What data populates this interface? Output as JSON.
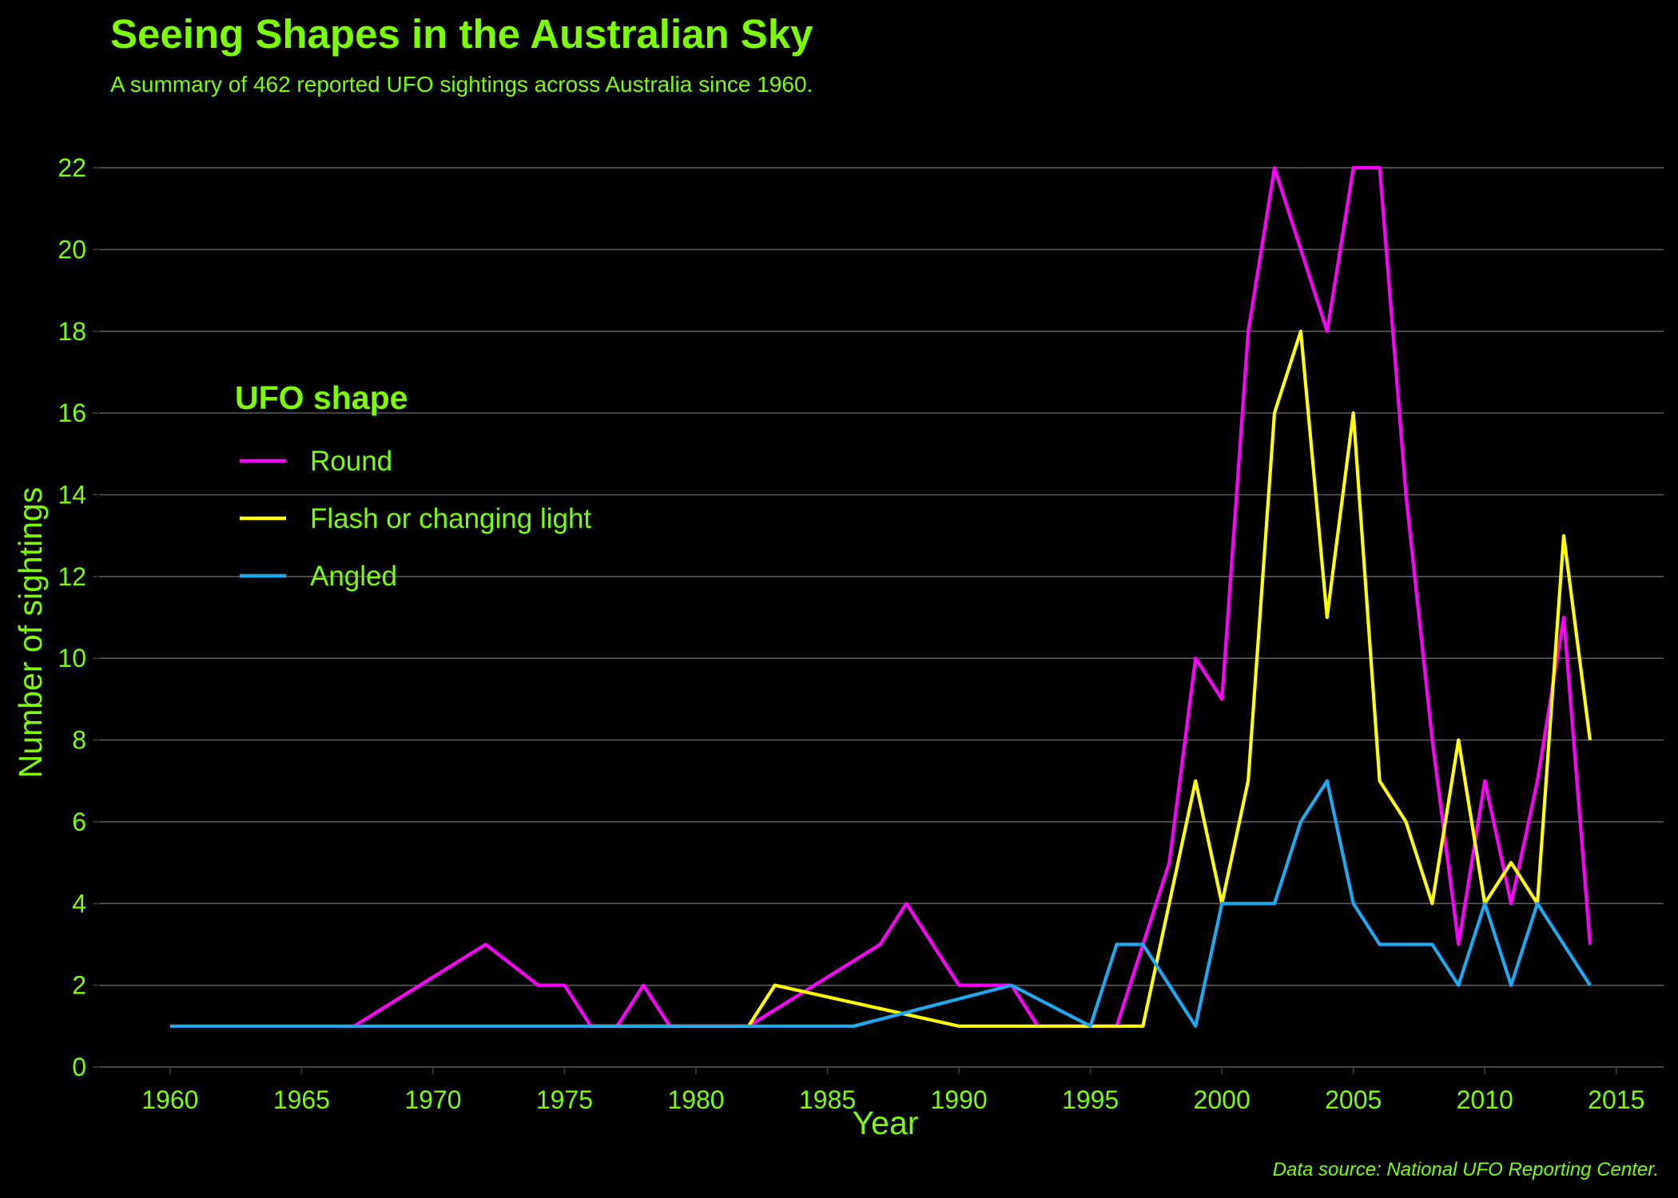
{
  "colors": {
    "background": "#000000",
    "text": "#7CFC00",
    "grid": "#5a5a5a"
  },
  "chart_data": {
    "type": "line",
    "title": "Seeing Shapes in the Australian Sky",
    "subtitle": "A summary of 462 reported UFO sightings across Australia since 1960.",
    "caption": "Data source: National UFO Reporting Center.",
    "xlabel": "Year",
    "ylabel": "Number of sightings",
    "xlim": [
      1957.3,
      2016.8
    ],
    "ylim": [
      0,
      22.9
    ],
    "xticks": [
      1960,
      1965,
      1970,
      1975,
      1980,
      1985,
      1990,
      1995,
      2000,
      2005,
      2010,
      2015
    ],
    "yticks": [
      0,
      2,
      4,
      6,
      8,
      10,
      12,
      14,
      16,
      18,
      20,
      22
    ],
    "grid": "horizontal",
    "legend": {
      "title": "UFO shape",
      "placement": "left"
    },
    "series": [
      {
        "name": "Round",
        "color": "#FF00FF",
        "points": [
          [
            1967,
            1
          ],
          [
            1972,
            3
          ],
          [
            1974,
            2
          ],
          [
            1975,
            2
          ],
          [
            1976,
            1
          ],
          [
            1977,
            1
          ],
          [
            1978,
            2
          ],
          [
            1979,
            1
          ],
          [
            1982,
            1
          ],
          [
            1987,
            3
          ],
          [
            1988,
            4
          ],
          [
            1990,
            2
          ],
          [
            1992,
            2
          ],
          [
            1993,
            1
          ],
          [
            1996,
            1
          ],
          [
            1998,
            5
          ],
          [
            1999,
            10
          ],
          [
            2000,
            9
          ],
          [
            2001,
            18
          ],
          [
            2002,
            22
          ],
          [
            2004,
            18
          ],
          [
            2005,
            22
          ],
          [
            2006,
            22
          ],
          [
            2007,
            14
          ],
          [
            2008,
            8
          ],
          [
            2009,
            3
          ],
          [
            2010,
            7
          ],
          [
            2011,
            4
          ],
          [
            2012,
            7
          ],
          [
            2013,
            11
          ],
          [
            2014,
            3
          ]
        ]
      },
      {
        "name": "Flash or changing light",
        "color": "#FFFF00",
        "points": [
          [
            1976,
            1
          ],
          [
            1982,
            1
          ],
          [
            1983,
            2
          ],
          [
            1990,
            1
          ],
          [
            1997,
            1
          ],
          [
            1999,
            7
          ],
          [
            2000,
            4
          ],
          [
            2001,
            7
          ],
          [
            2002,
            16
          ],
          [
            2003,
            18
          ],
          [
            2004,
            11
          ],
          [
            2005,
            16
          ],
          [
            2006,
            7
          ],
          [
            2007,
            6
          ],
          [
            2008,
            4
          ],
          [
            2009,
            8
          ],
          [
            2010,
            4
          ],
          [
            2011,
            5
          ],
          [
            2012,
            4
          ],
          [
            2013,
            13
          ],
          [
            2014,
            8
          ]
        ]
      },
      {
        "name": "Angled",
        "color": "#1EAAF1",
        "points": [
          [
            1960,
            1
          ],
          [
            1986,
            1
          ],
          [
            1992,
            2
          ],
          [
            1995,
            1
          ],
          [
            1996,
            3
          ],
          [
            1997,
            3
          ],
          [
            1999,
            1
          ],
          [
            2000,
            4
          ],
          [
            2002,
            4
          ],
          [
            2003,
            6
          ],
          [
            2004,
            7
          ],
          [
            2005,
            4
          ],
          [
            2006,
            3
          ],
          [
            2008,
            3
          ],
          [
            2009,
            2
          ],
          [
            2010,
            4
          ],
          [
            2011,
            2
          ],
          [
            2012,
            4
          ],
          [
            2014,
            2
          ]
        ]
      }
    ]
  }
}
